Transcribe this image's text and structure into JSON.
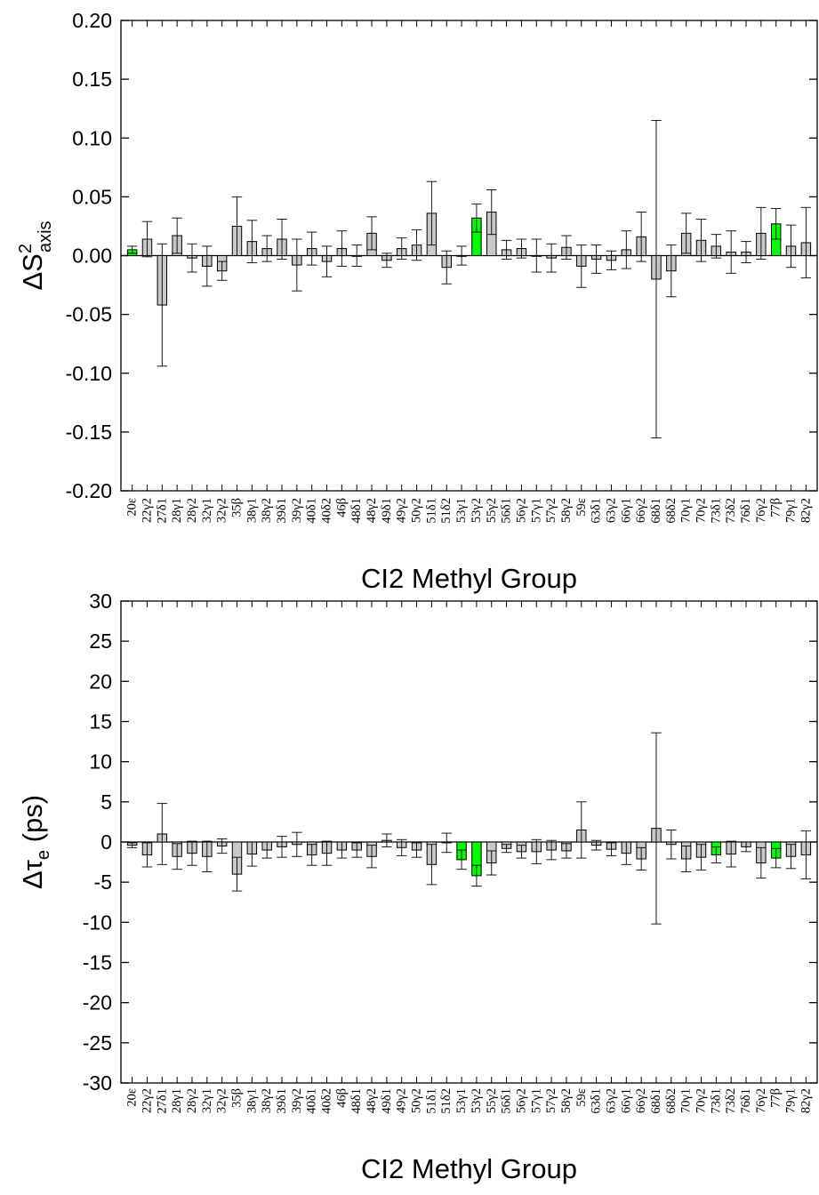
{
  "chart_data": [
    {
      "type": "bar",
      "xlabel": "CI2 Methyl Group",
      "ylabel": {
        "main": "ΔS",
        "sup": "2",
        "sub": "axis"
      },
      "ylim": [
        -0.2,
        0.2
      ],
      "yticks": [
        "0.20",
        "0.15",
        "0.10",
        "0.05",
        "0.00",
        "-0.05",
        "-0.10",
        "-0.15",
        "-0.20"
      ],
      "grid": false,
      "categories": [
        "20ε",
        "22γ2",
        "27δ1",
        "28γ1",
        "28γ2",
        "32γ1",
        "32γ2",
        "35β",
        "38γ1",
        "38γ2",
        "39δ1",
        "39γ2",
        "40δ1",
        "40δ2",
        "46β",
        "48δ1",
        "48γ2",
        "49δ1",
        "49γ2",
        "50γ2",
        "51δ1",
        "51δ2",
        "53γ1",
        "53γ2",
        "55γ2",
        "56δ1",
        "56γ2",
        "57γ1",
        "57γ2",
        "58γ2",
        "59ε",
        "63δ1",
        "63γ2",
        "66γ1",
        "66γ2",
        "68δ1",
        "68δ2",
        "70γ1",
        "70γ2",
        "73δ1",
        "73δ2",
        "76δ1",
        "76γ2",
        "77β",
        "79γ1",
        "82γ2"
      ],
      "values": [
        0.005,
        0.014,
        -0.042,
        0.017,
        -0.002,
        -0.009,
        -0.013,
        0.025,
        0.012,
        0.006,
        0.014,
        -0.008,
        0.006,
        -0.005,
        0.006,
        0.0,
        0.019,
        -0.004,
        0.006,
        0.009,
        0.036,
        -0.01,
        0.0,
        0.032,
        0.037,
        0.005,
        0.006,
        0.0,
        -0.002,
        0.007,
        -0.009,
        -0.003,
        -0.004,
        0.005,
        0.016,
        -0.02,
        -0.013,
        0.019,
        0.013,
        0.008,
        0.003,
        0.003,
        0.019,
        0.027,
        0.008,
        0.011
      ],
      "errors": [
        0.003,
        0.015,
        0.052,
        0.015,
        0.012,
        0.017,
        0.008,
        0.025,
        0.018,
        0.011,
        0.017,
        0.022,
        0.014,
        0.013,
        0.015,
        0.009,
        0.014,
        0.006,
        0.009,
        0.013,
        0.027,
        0.014,
        0.008,
        0.012,
        0.019,
        0.008,
        0.008,
        0.014,
        0.012,
        0.01,
        0.018,
        0.012,
        0.008,
        0.016,
        0.021,
        0.135,
        0.022,
        0.017,
        0.018,
        0.01,
        0.018,
        0.009,
        0.022,
        0.013,
        0.018,
        0.03
      ],
      "highlighted": [
        0,
        22,
        23,
        43
      ],
      "colors": {
        "bar": "#c8c8c8",
        "highlight": "#00ff00",
        "outline": "#000000"
      }
    },
    {
      "type": "bar",
      "xlabel": "CI2 Methyl Group",
      "ylabel": {
        "main": "Δτ",
        "sub": "e",
        "suffix": " (ps)"
      },
      "ylim": [
        -30,
        30
      ],
      "yticks": [
        "30",
        "25",
        "20",
        "15",
        "10",
        "5",
        "0",
        "-5",
        "-10",
        "-15",
        "-20",
        "-25",
        "-30"
      ],
      "grid": false,
      "categories": [
        "20ε",
        "22γ2",
        "27δ1",
        "28γ1",
        "28γ2",
        "32γ1",
        "32γ2",
        "35β",
        "38γ1",
        "38γ2",
        "39δ1",
        "39γ2",
        "40δ1",
        "40δ2",
        "46β",
        "48δ1",
        "48γ2",
        "49δ1",
        "49γ2",
        "50γ2",
        "51δ1",
        "51δ2",
        "53γ1",
        "53γ2",
        "55γ2",
        "56δ1",
        "56γ2",
        "57γ1",
        "57γ2",
        "58γ2",
        "59ε",
        "63δ1",
        "63γ2",
        "66γ1",
        "66γ2",
        "68δ1",
        "68δ2",
        "70γ1",
        "70γ2",
        "73δ1",
        "73δ2",
        "76δ1",
        "76γ2",
        "77β",
        "79γ1",
        "82γ2"
      ],
      "values": [
        -0.4,
        -1.6,
        1.0,
        -1.8,
        -1.4,
        -1.8,
        -0.5,
        -4.0,
        -1.5,
        -1.0,
        -0.6,
        -0.3,
        -1.6,
        -1.4,
        -1.0,
        -1.0,
        -1.8,
        0.2,
        -0.7,
        -1.0,
        -2.8,
        -0.1,
        -2.2,
        -4.2,
        -2.6,
        -0.8,
        -1.2,
        -1.2,
        -1.0,
        -1.1,
        1.5,
        -0.4,
        -0.9,
        -1.4,
        -2.1,
        1.7,
        -0.3,
        -2.1,
        -1.9,
        -1.6,
        -1.5,
        -0.6,
        -2.6,
        -2.0,
        -1.8,
        -1.6
      ],
      "errors": [
        0.3,
        1.5,
        3.8,
        1.6,
        1.5,
        1.9,
        0.9,
        2.1,
        1.5,
        1.0,
        1.3,
        1.5,
        1.3,
        1.5,
        1.0,
        0.9,
        1.4,
        0.8,
        1.0,
        0.9,
        2.5,
        1.2,
        1.2,
        1.3,
        1.5,
        0.5,
        0.8,
        1.5,
        1.2,
        0.9,
        3.5,
        0.6,
        0.8,
        1.4,
        1.4,
        11.9,
        1.8,
        1.6,
        1.6,
        1.0,
        1.6,
        0.6,
        1.9,
        1.2,
        1.5,
        3.0
      ],
      "highlighted": [
        22,
        23,
        39,
        43
      ],
      "colors": {
        "bar": "#c8c8c8",
        "highlight": "#00ff00",
        "outline": "#000000"
      }
    }
  ]
}
